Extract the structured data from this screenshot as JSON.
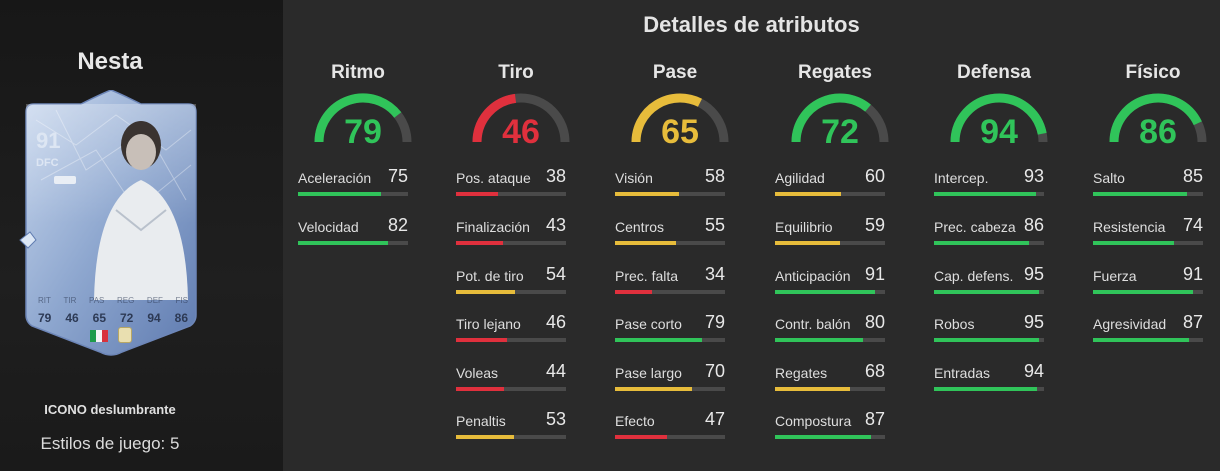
{
  "player": {
    "name": "Nesta",
    "rating": "91",
    "position": "DFC",
    "card_stat_labels": [
      "RIT",
      "TIR",
      "PAS",
      "REG",
      "DEF",
      "FIS"
    ],
    "card_stats": [
      "79",
      "46",
      "65",
      "72",
      "94",
      "86"
    ],
    "subtitle": "ICONO deslumbrante",
    "playstyles_label": "Estilos de juego:",
    "playstyles_count": "5"
  },
  "title": "Detalles de atributos",
  "colors": {
    "green": "#30c45a",
    "red": "#e0303d",
    "yellow": "#e7bc3b",
    "track": "#4a4a4a"
  },
  "categories": [
    {
      "name": "Ritmo",
      "value": 79,
      "color": "green",
      "stats": [
        {
          "label": "Aceleración",
          "value": 75,
          "color": "green"
        },
        {
          "label": "Velocidad",
          "value": 82,
          "color": "green"
        }
      ]
    },
    {
      "name": "Tiro",
      "value": 46,
      "color": "red",
      "stats": [
        {
          "label": "Pos. ataque",
          "value": 38,
          "color": "red"
        },
        {
          "label": "Finalización",
          "value": 43,
          "color": "red"
        },
        {
          "label": "Pot. de tiro",
          "value": 54,
          "color": "yellow"
        },
        {
          "label": "Tiro lejano",
          "value": 46,
          "color": "red"
        },
        {
          "label": "Voleas",
          "value": 44,
          "color": "red"
        },
        {
          "label": "Penaltis",
          "value": 53,
          "color": "yellow"
        }
      ]
    },
    {
      "name": "Pase",
      "value": 65,
      "color": "yellow",
      "stats": [
        {
          "label": "Visión",
          "value": 58,
          "color": "yellow"
        },
        {
          "label": "Centros",
          "value": 55,
          "color": "yellow"
        },
        {
          "label": "Prec. falta",
          "value": 34,
          "color": "red"
        },
        {
          "label": "Pase corto",
          "value": 79,
          "color": "green"
        },
        {
          "label": "Pase largo",
          "value": 70,
          "color": "yellow"
        },
        {
          "label": "Efecto",
          "value": 47,
          "color": "red"
        }
      ]
    },
    {
      "name": "Regates",
      "value": 72,
      "color": "green",
      "stats": [
        {
          "label": "Agilidad",
          "value": 60,
          "color": "yellow"
        },
        {
          "label": "Equilibrio",
          "value": 59,
          "color": "yellow"
        },
        {
          "label": "Anticipación",
          "value": 91,
          "color": "green"
        },
        {
          "label": "Contr. balón",
          "value": 80,
          "color": "green"
        },
        {
          "label": "Regates",
          "value": 68,
          "color": "yellow"
        },
        {
          "label": "Compostura",
          "value": 87,
          "color": "green"
        }
      ]
    },
    {
      "name": "Defensa",
      "value": 94,
      "color": "green",
      "stats": [
        {
          "label": "Intercep.",
          "value": 93,
          "color": "green"
        },
        {
          "label": "Prec. cabeza",
          "value": 86,
          "color": "green"
        },
        {
          "label": "Cap. defens.",
          "value": 95,
          "color": "green"
        },
        {
          "label": "Robos",
          "value": 95,
          "color": "green"
        },
        {
          "label": "Entradas",
          "value": 94,
          "color": "green"
        }
      ]
    },
    {
      "name": "Físico",
      "value": 86,
      "color": "green",
      "stats": [
        {
          "label": "Salto",
          "value": 85,
          "color": "green"
        },
        {
          "label": "Resistencia",
          "value": 74,
          "color": "green"
        },
        {
          "label": "Fuerza",
          "value": 91,
          "color": "green"
        },
        {
          "label": "Agresividad",
          "value": 87,
          "color": "green"
        }
      ]
    }
  ]
}
